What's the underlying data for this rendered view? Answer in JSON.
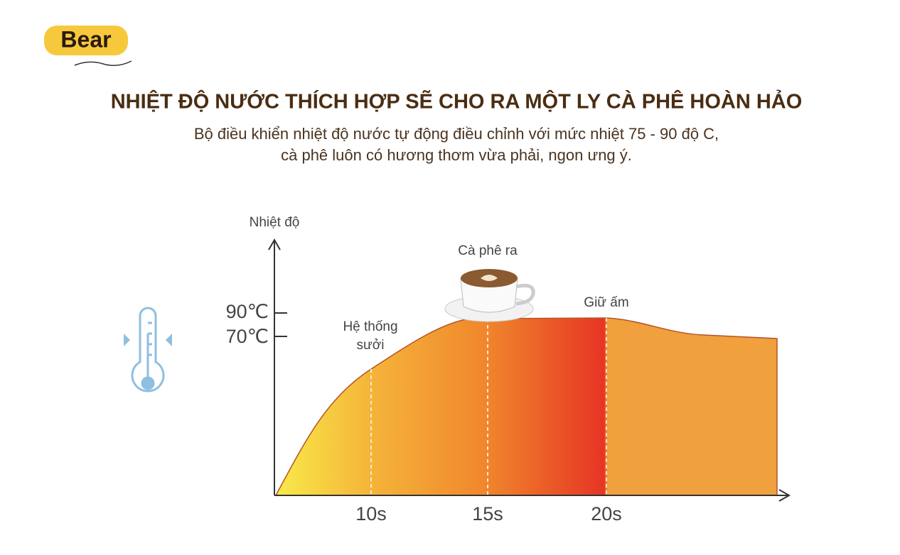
{
  "logo": {
    "brand": "Bear"
  },
  "header": {
    "title": "NHIỆT ĐỘ NƯỚC THÍCH HỢP SẼ CHO RA MỘT LY CÀ PHÊ HOÀN HẢO",
    "subtitle": [
      "Bộ điều khiển nhiệt độ nước tự động điều chỉnh với mức nhiệt 75 - 90 độ C,",
      "cà phê luôn có hương thơm vừa phải, ngon ưng ý."
    ]
  },
  "diagram": {
    "y_axis_label": "Nhiệt độ",
    "y_labels": [
      "90℃",
      "70℃"
    ],
    "x_labels": [
      "10s",
      "15s",
      "20s"
    ],
    "annotations": {
      "heating": [
        "Hệ thống",
        "sưởi"
      ],
      "coffee": "Cà phê ra",
      "keep_warm": "Giữ ấm"
    }
  }
}
